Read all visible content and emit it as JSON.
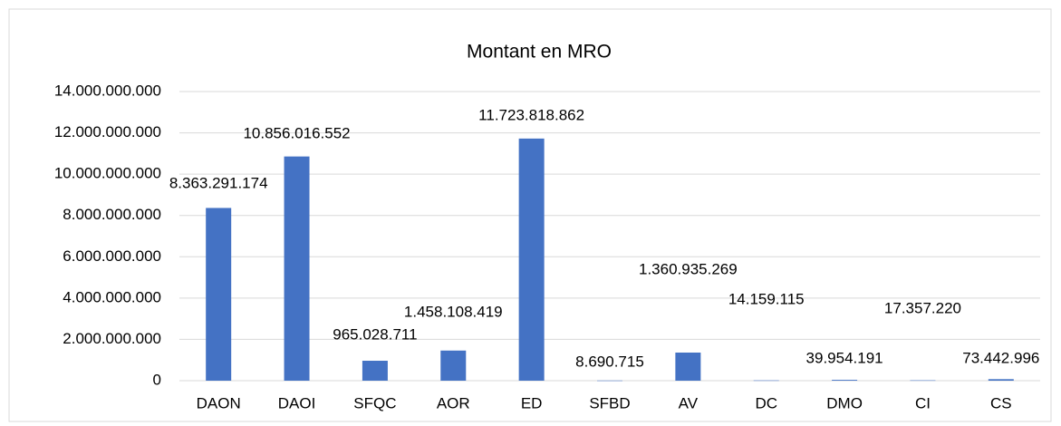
{
  "chart_data": {
    "type": "bar",
    "title": "Montant en MRO",
    "categories": [
      "DAON",
      "DAOI",
      "SFQC",
      "AOR",
      "ED",
      "SFBD",
      "AV",
      "DC",
      "DMO",
      "CI",
      "CS"
    ],
    "values": [
      8363291174,
      10856016552,
      965028711,
      1458108419,
      11723818862,
      8690715,
      1360935269,
      14159115,
      39954191,
      17357220,
      73442996
    ],
    "value_labels": [
      "8.363.291.174",
      "10.856.016.552",
      "965.028.711",
      "1.458.108.419",
      "11.723.818.862",
      "8.690.715",
      "1.360.935.269",
      "14.159.115",
      "39.954.191",
      "17.357.220",
      "73.442.996"
    ],
    "color": "#4472c4",
    "ylim": [
      0,
      14000000000
    ],
    "yticks": [
      0,
      {
        "value": 2000000000,
        "label": "2.000.000.000"
      },
      {
        "value": 4000000000,
        "label": "4.000.000.000"
      },
      {
        "value": 6000000000,
        "label": "6.000.000.000"
      },
      {
        "value": 8000000000,
        "label": "8.000.000.000"
      },
      {
        "value": 10000000000,
        "label": "10.000.000.000"
      },
      {
        "value": 12000000000,
        "label": "12.000.000.000"
      },
      {
        "value": 14000000000,
        "label": "14.000.000.000"
      }
    ],
    "grid": true
  }
}
